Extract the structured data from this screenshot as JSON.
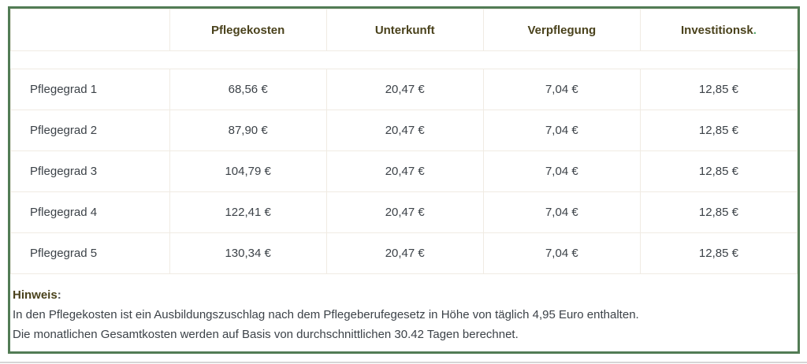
{
  "colors": {
    "panel_border_green": "#527c55",
    "header_text_olive": "#4a421c",
    "body_text": "#3c4248",
    "accent_green_dot": "#53a86e",
    "grid_line": "#f0ebe3"
  },
  "table": {
    "columns": [
      "",
      "Pflegekosten",
      "Unterkunft",
      "Verpflegung",
      "Investitionsk"
    ],
    "last_header_dot": ".",
    "rows": [
      {
        "label": "Pflegegrad 1",
        "values": [
          "68,56 €",
          "20,47 €",
          "7,04 €",
          "12,85 €"
        ]
      },
      {
        "label": "Pflegegrad 2",
        "values": [
          "87,90 €",
          "20,47 €",
          "7,04 €",
          "12,85 €"
        ]
      },
      {
        "label": "Pflegegrad 3",
        "values": [
          "104,79 €",
          "20,47 €",
          "7,04 €",
          "12,85 €"
        ]
      },
      {
        "label": "Pflegegrad 4",
        "values": [
          "122,41 €",
          "20,47 €",
          "7,04 €",
          "12,85 €"
        ]
      },
      {
        "label": "Pflegegrad 5",
        "values": [
          "130,34 €",
          "20,47 €",
          "7,04 €",
          "12,85 €"
        ]
      }
    ]
  },
  "note": {
    "title": "Hinweis",
    "colon": ":",
    "lines": [
      "In den Pflegekosten ist ein Ausbildungszuschlag nach dem Pflegeberufegesetz in Höhe von täglich 4,95 Euro enthalten.",
      "Die monatlichen Gesamtkosten werden auf Basis von durchschnittlichen 30.42 Tagen berechnet."
    ]
  }
}
